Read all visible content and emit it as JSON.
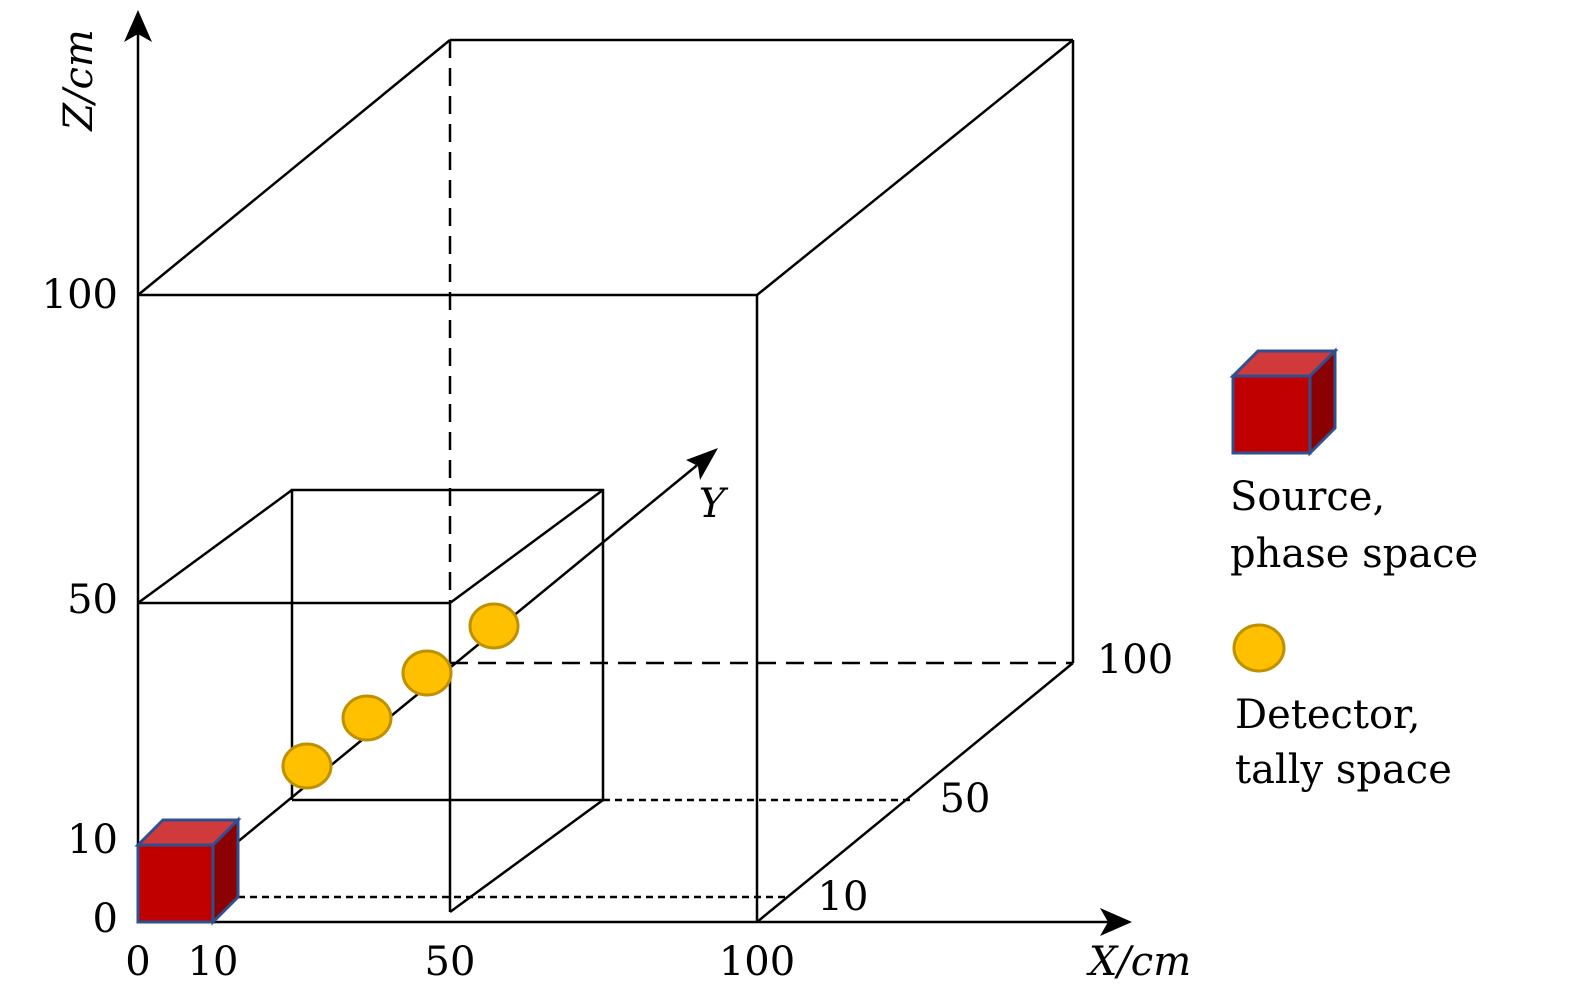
{
  "axes": {
    "z_label": "Z/cm",
    "x_label": "X/cm",
    "y_label": "Y",
    "z_ticks": [
      "100",
      "50",
      "10",
      "0"
    ],
    "x_ticks": [
      "0",
      "10",
      "50",
      "100"
    ],
    "y_ticks": [
      "100",
      "50",
      "10"
    ]
  },
  "legend": {
    "source": [
      "Source,",
      "phase space"
    ],
    "detector": [
      "Detector,",
      "tally space"
    ]
  }
}
